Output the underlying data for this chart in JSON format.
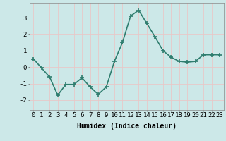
{
  "x": [
    0,
    1,
    2,
    3,
    4,
    5,
    6,
    7,
    8,
    9,
    10,
    11,
    12,
    13,
    14,
    15,
    16,
    17,
    18,
    19,
    20,
    21,
    22,
    23
  ],
  "y": [
    0.5,
    -0.05,
    -0.6,
    -1.7,
    -1.05,
    -1.05,
    -0.65,
    -1.2,
    -1.65,
    -1.2,
    0.35,
    1.5,
    3.1,
    3.45,
    2.65,
    1.85,
    1.0,
    0.6,
    0.35,
    0.3,
    0.35,
    0.75,
    0.75,
    0.75
  ],
  "line_color": "#2e7d6e",
  "marker": "+",
  "marker_size": 4,
  "line_width": 1.2,
  "bg_color": "#cce8e8",
  "grid_color": "#e8c8c8",
  "xlabel": "Humidex (Indice chaleur)",
  "xlabel_fontsize": 7,
  "xlabel_fontweight": "bold",
  "ylabel_ticks": [
    -2,
    -1,
    0,
    1,
    2,
    3
  ],
  "xlim": [
    -0.5,
    23.5
  ],
  "ylim": [
    -2.6,
    3.9
  ],
  "tick_fontsize": 6.5
}
